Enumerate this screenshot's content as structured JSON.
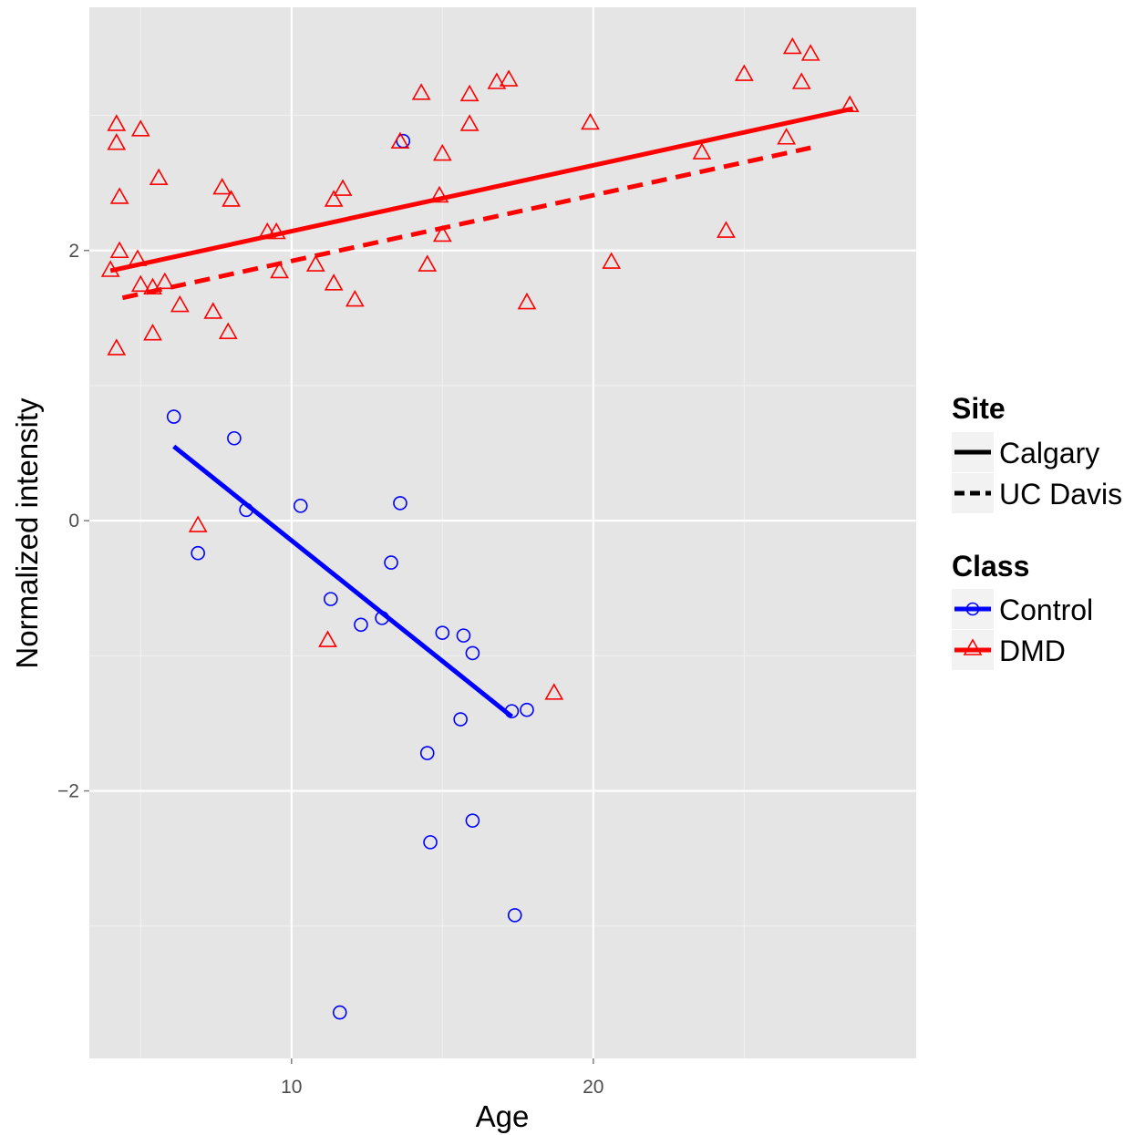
{
  "chart_data": {
    "type": "scatter",
    "xlabel": "Age",
    "ylabel": "Normalized intensity",
    "xlim": [
      3.3,
      30.7
    ],
    "ylim": [
      -3.98,
      3.8
    ],
    "x_ticks": [
      10,
      20
    ],
    "y_ticks": [
      -2,
      0,
      2
    ],
    "x_tick_labels": [
      "10",
      "20"
    ],
    "y_tick_labels": [
      "−2",
      "0",
      "2"
    ],
    "grid": true,
    "panel_background": "#e5e5e5",
    "grid_color": "#ffffff",
    "legend_position": "right",
    "legend": {
      "site": {
        "title": "Site",
        "entries": [
          {
            "label": "Calgary",
            "linetype": "solid"
          },
          {
            "label": "UC Davis",
            "linetype": "dashed"
          }
        ]
      },
      "class": {
        "title": "Class",
        "entries": [
          {
            "label": "Control",
            "color": "#0000ff",
            "shape": "circle"
          },
          {
            "label": "DMD",
            "color": "#ff0000",
            "shape": "triangle"
          }
        ]
      }
    },
    "series": [
      {
        "name": "Control",
        "color": "#0000ff",
        "shape": "circle",
        "points": [
          [
            6.1,
            0.77
          ],
          [
            8.1,
            0.61
          ],
          [
            6.9,
            -0.24
          ],
          [
            8.5,
            0.08
          ],
          [
            10.3,
            0.11
          ],
          [
            13.6,
            0.13
          ],
          [
            13.3,
            -0.31
          ],
          [
            11.3,
            -0.58
          ],
          [
            12.3,
            -0.77
          ],
          [
            13.0,
            -0.72
          ],
          [
            15.0,
            -0.83
          ],
          [
            15.7,
            -0.85
          ],
          [
            16.0,
            -0.98
          ],
          [
            17.3,
            -1.41
          ],
          [
            17.8,
            -1.4
          ],
          [
            15.6,
            -1.47
          ],
          [
            14.5,
            -1.72
          ],
          [
            14.6,
            -2.38
          ],
          [
            16.0,
            -2.22
          ],
          [
            17.4,
            -2.92
          ],
          [
            11.6,
            -3.64
          ],
          [
            13.7,
            2.81
          ]
        ]
      },
      {
        "name": "DMD",
        "color": "#ff0000",
        "shape": "triangle",
        "points": [
          [
            4.2,
            2.93
          ],
          [
            4.2,
            2.79
          ],
          [
            4.3,
            2.39
          ],
          [
            5.0,
            2.89
          ],
          [
            5.6,
            2.53
          ],
          [
            4.3,
            1.99
          ],
          [
            4.0,
            1.85
          ],
          [
            4.9,
            1.93
          ],
          [
            5.0,
            1.74
          ],
          [
            5.4,
            1.72
          ],
          [
            5.8,
            1.76
          ],
          [
            6.3,
            1.59
          ],
          [
            4.2,
            1.27
          ],
          [
            5.4,
            1.38
          ],
          [
            7.4,
            1.54
          ],
          [
            7.9,
            1.39
          ],
          [
            7.7,
            2.46
          ],
          [
            8.0,
            2.37
          ],
          [
            9.2,
            2.13
          ],
          [
            9.5,
            2.13
          ],
          [
            9.6,
            1.84
          ],
          [
            10.8,
            1.89
          ],
          [
            11.4,
            1.75
          ],
          [
            11.4,
            2.37
          ],
          [
            11.7,
            2.45
          ],
          [
            12.1,
            1.63
          ],
          [
            13.6,
            2.8
          ],
          [
            14.3,
            3.16
          ],
          [
            14.5,
            1.89
          ],
          [
            15.0,
            2.71
          ],
          [
            14.9,
            2.4
          ],
          [
            15.0,
            2.11
          ],
          [
            15.9,
            3.15
          ],
          [
            15.9,
            2.93
          ],
          [
            16.8,
            3.24
          ],
          [
            17.2,
            3.26
          ],
          [
            17.8,
            1.61
          ],
          [
            19.9,
            2.94
          ],
          [
            20.6,
            1.91
          ],
          [
            23.6,
            2.72
          ],
          [
            24.4,
            2.14
          ],
          [
            25.0,
            3.3
          ],
          [
            26.4,
            2.83
          ],
          [
            26.6,
            3.5
          ],
          [
            26.9,
            3.24
          ],
          [
            27.2,
            3.45
          ],
          [
            28.5,
            3.07
          ],
          [
            6.9,
            -0.04
          ],
          [
            11.2,
            -0.89
          ],
          [
            18.7,
            -1.28
          ]
        ]
      }
    ],
    "fit_lines": [
      {
        "class": "DMD",
        "site": "Calgary",
        "linetype": "solid",
        "color": "#ff0000",
        "x": [
          4.0,
          28.6
        ],
        "y": [
          1.85,
          3.05
        ]
      },
      {
        "class": "DMD",
        "site": "UC Davis",
        "linetype": "dashed",
        "color": "#ff0000",
        "x": [
          4.4,
          27.2
        ],
        "y": [
          1.65,
          2.76
        ]
      },
      {
        "class": "Control",
        "site": "Calgary",
        "linetype": "solid",
        "color": "#0000ff",
        "x": [
          6.1,
          17.3
        ],
        "y": [
          0.55,
          -1.45
        ]
      }
    ]
  }
}
